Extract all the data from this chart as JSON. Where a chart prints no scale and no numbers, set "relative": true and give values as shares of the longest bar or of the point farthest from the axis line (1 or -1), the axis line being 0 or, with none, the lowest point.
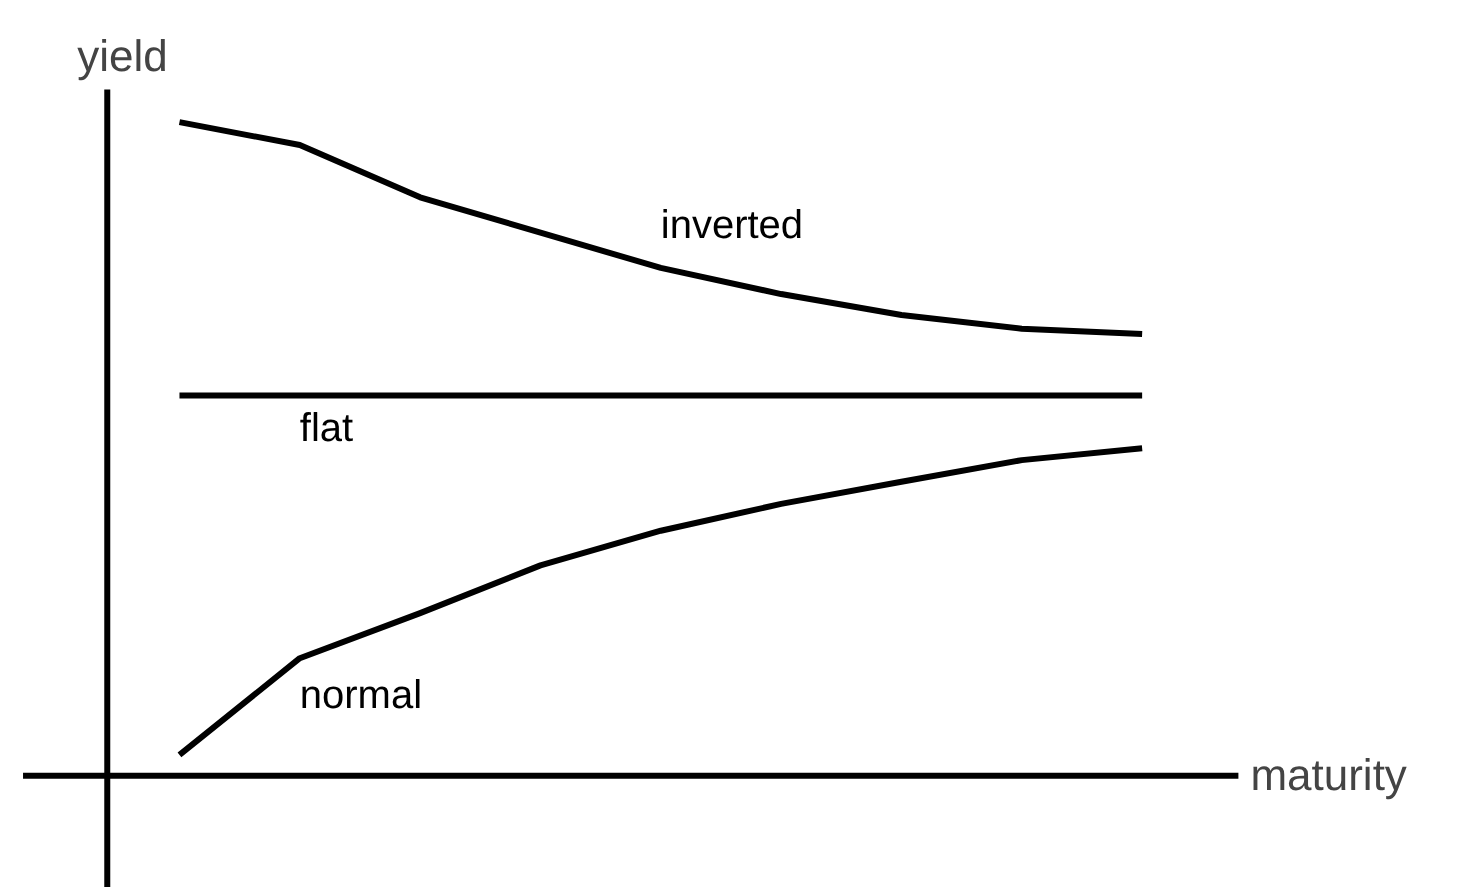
{
  "chart_data": {
    "type": "line",
    "relative": true,
    "xlabel": "maturity",
    "ylabel": "yield",
    "categories": [
      null,
      null,
      null,
      null,
      null,
      null,
      null,
      null,
      null
    ],
    "series": [
      {
        "name": "inverted",
        "color": "#000000",
        "values": [
          1,
          0.965,
          0.885,
          0.831,
          0.777,
          0.737,
          0.705,
          0.684,
          0.676
        ]
      },
      {
        "name": "flat",
        "color": "#000000",
        "values": [
          0.582,
          0.582,
          0.582,
          0.582,
          0.582,
          0.582,
          0.582,
          0.582,
          0.582
        ]
      },
      {
        "name": "normal",
        "color": "#000000",
        "values": [
          0.032,
          0.18,
          0.249,
          0.322,
          0.375,
          0.416,
          0.45,
          0.483,
          0.501
        ]
      }
    ],
    "legend": false,
    "grid": false,
    "marker": "none",
    "line_style": "solid"
  }
}
